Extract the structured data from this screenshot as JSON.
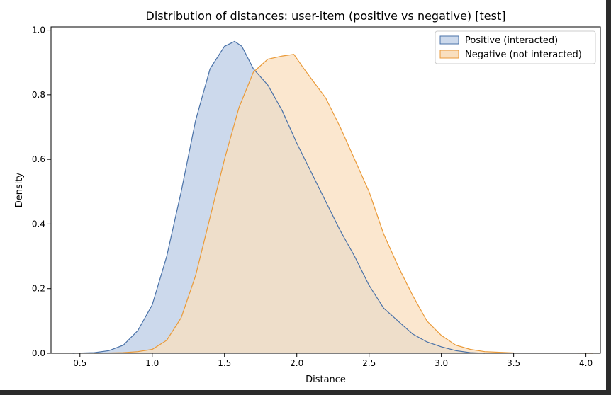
{
  "chart_data": {
    "type": "area",
    "title": "Distribution of distances: user-item (positive vs negative) [test]",
    "xlabel": "Distance",
    "ylabel": "Density",
    "xlim": [
      0.3,
      4.1
    ],
    "ylim": [
      0,
      1.01
    ],
    "x_ticks": [
      0.5,
      1.0,
      1.5,
      2.0,
      2.5,
      3.0,
      3.5,
      4.0
    ],
    "y_ticks": [
      0.0,
      0.2,
      0.4,
      0.6,
      0.8,
      1.0
    ],
    "grid": false,
    "legend_position": "top-right",
    "series": [
      {
        "name": "Positive (interacted)",
        "line_color": "#4a72a8",
        "fill_color": "#ccd9ec",
        "points": [
          [
            0.45,
            0.0
          ],
          [
            0.6,
            0.002
          ],
          [
            0.7,
            0.008
          ],
          [
            0.8,
            0.025
          ],
          [
            0.9,
            0.07
          ],
          [
            1.0,
            0.15
          ],
          [
            1.1,
            0.3
          ],
          [
            1.2,
            0.5
          ],
          [
            1.3,
            0.72
          ],
          [
            1.4,
            0.88
          ],
          [
            1.5,
            0.95
          ],
          [
            1.57,
            0.965
          ],
          [
            1.62,
            0.95
          ],
          [
            1.7,
            0.88
          ],
          [
            1.8,
            0.83
          ],
          [
            1.9,
            0.75
          ],
          [
            2.0,
            0.65
          ],
          [
            2.1,
            0.56
          ],
          [
            2.2,
            0.47
          ],
          [
            2.3,
            0.38
          ],
          [
            2.4,
            0.3
          ],
          [
            2.5,
            0.21
          ],
          [
            2.6,
            0.14
          ],
          [
            2.7,
            0.1
          ],
          [
            2.8,
            0.06
          ],
          [
            2.9,
            0.035
          ],
          [
            3.0,
            0.02
          ],
          [
            3.1,
            0.008
          ],
          [
            3.2,
            0.002
          ],
          [
            3.3,
            0.0
          ]
        ]
      },
      {
        "name": "Negative (not interacted)",
        "line_color": "#ea9a38",
        "fill_color": "#f9dfbf",
        "points": [
          [
            0.6,
            0.0
          ],
          [
            0.8,
            0.002
          ],
          [
            0.9,
            0.005
          ],
          [
            1.0,
            0.012
          ],
          [
            1.1,
            0.04
          ],
          [
            1.2,
            0.11
          ],
          [
            1.3,
            0.24
          ],
          [
            1.4,
            0.42
          ],
          [
            1.5,
            0.6
          ],
          [
            1.6,
            0.76
          ],
          [
            1.7,
            0.87
          ],
          [
            1.8,
            0.91
          ],
          [
            1.9,
            0.92
          ],
          [
            1.98,
            0.925
          ],
          [
            2.05,
            0.88
          ],
          [
            2.1,
            0.85
          ],
          [
            2.2,
            0.79
          ],
          [
            2.3,
            0.7
          ],
          [
            2.4,
            0.6
          ],
          [
            2.5,
            0.5
          ],
          [
            2.6,
            0.37
          ],
          [
            2.7,
            0.27
          ],
          [
            2.8,
            0.18
          ],
          [
            2.9,
            0.1
          ],
          [
            3.0,
            0.055
          ],
          [
            3.1,
            0.025
          ],
          [
            3.2,
            0.012
          ],
          [
            3.3,
            0.005
          ],
          [
            3.5,
            0.001
          ],
          [
            4.05,
            0.0
          ]
        ]
      }
    ]
  }
}
